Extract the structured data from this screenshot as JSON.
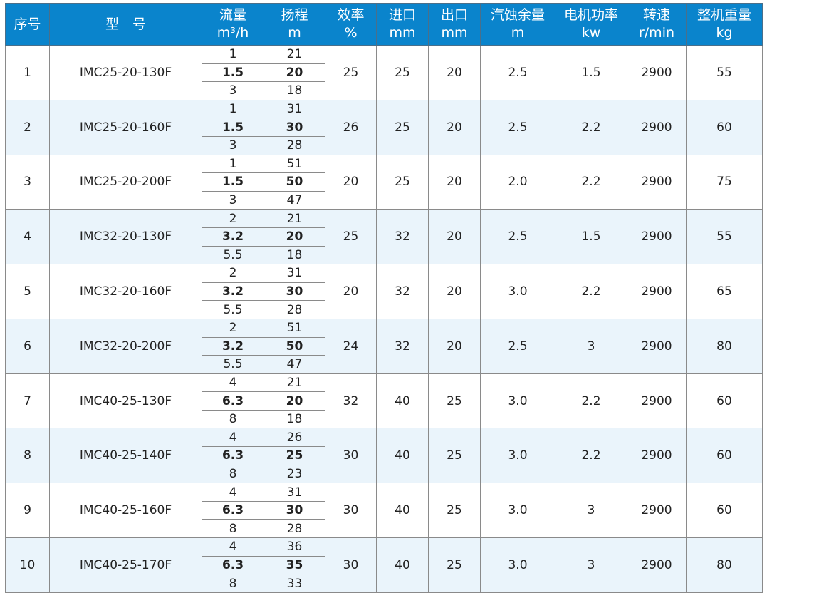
{
  "header": [
    {
      "l1": "序号",
      "l2": ""
    },
    {
      "l1": "型　号",
      "l2": ""
    },
    {
      "l1": "流量",
      "l2": "m³/h"
    },
    {
      "l1": "扬程",
      "l2": "m"
    },
    {
      "l1": "效率",
      "l2": "%"
    },
    {
      "l1": "进口",
      "l2": "mm"
    },
    {
      "l1": "出口",
      "l2": "mm"
    },
    {
      "l1": "汽蚀余量",
      "l2": "m"
    },
    {
      "l1": "电机功率",
      "l2": "kw"
    },
    {
      "l1": "转速",
      "l2": "r/min"
    },
    {
      "l1": "整机重量",
      "l2": "kg"
    }
  ],
  "colors": {
    "header_bg": "#0a84cc",
    "alt_row_bg": "#eaf4fb",
    "border": "#8a8a8a"
  },
  "rows": [
    {
      "no": "1",
      "model": "IMC25-20-130F",
      "flow": [
        "1",
        "1.5",
        "3"
      ],
      "head": [
        "21",
        "20",
        "18"
      ],
      "eff": "25",
      "inlet": "25",
      "outlet": "20",
      "npsh": "2.5",
      "power": "1.5",
      "speed": "2900",
      "weight": "55"
    },
    {
      "no": "2",
      "model": "IMC25-20-160F",
      "flow": [
        "1",
        "1.5",
        "3"
      ],
      "head": [
        "31",
        "30",
        "28"
      ],
      "eff": "26",
      "inlet": "25",
      "outlet": "20",
      "npsh": "2.5",
      "power": "2.2",
      "speed": "2900",
      "weight": "60"
    },
    {
      "no": "3",
      "model": "IMC25-20-200F",
      "flow": [
        "1",
        "1.5",
        "3"
      ],
      "head": [
        "51",
        "50",
        "47"
      ],
      "eff": "20",
      "inlet": "25",
      "outlet": "20",
      "npsh": "2.0",
      "power": "2.2",
      "speed": "2900",
      "weight": "75"
    },
    {
      "no": "4",
      "model": "IMC32-20-130F",
      "flow": [
        "2",
        "3.2",
        "5.5"
      ],
      "head": [
        "21",
        "20",
        "18"
      ],
      "eff": "25",
      "inlet": "32",
      "outlet": "20",
      "npsh": "2.5",
      "power": "1.5",
      "speed": "2900",
      "weight": "55"
    },
    {
      "no": "5",
      "model": "IMC32-20-160F",
      "flow": [
        "2",
        "3.2",
        "5.5"
      ],
      "head": [
        "31",
        "30",
        "28"
      ],
      "eff": "20",
      "inlet": "32",
      "outlet": "20",
      "npsh": "3.0",
      "power": "2.2",
      "speed": "2900",
      "weight": "65"
    },
    {
      "no": "6",
      "model": "IMC32-20-200F",
      "flow": [
        "2",
        "3.2",
        "5.5"
      ],
      "head": [
        "51",
        "50",
        "47"
      ],
      "eff": "24",
      "inlet": "32",
      "outlet": "20",
      "npsh": "2.5",
      "power": "3",
      "speed": "2900",
      "weight": "80"
    },
    {
      "no": "7",
      "model": "IMC40-25-130F",
      "flow": [
        "4",
        "6.3",
        "8"
      ],
      "head": [
        "21",
        "20",
        "18"
      ],
      "eff": "32",
      "inlet": "40",
      "outlet": "25",
      "npsh": "3.0",
      "power": "2.2",
      "speed": "2900",
      "weight": "60"
    },
    {
      "no": "8",
      "model": "IMC40-25-140F",
      "flow": [
        "4",
        "6.3",
        "8"
      ],
      "head": [
        "26",
        "25",
        "23"
      ],
      "eff": "30",
      "inlet": "40",
      "outlet": "25",
      "npsh": "3.0",
      "power": "2.2",
      "speed": "2900",
      "weight": "60"
    },
    {
      "no": "9",
      "model": "IMC40-25-160F",
      "flow": [
        "4",
        "6.3",
        "8"
      ],
      "head": [
        "31",
        "30",
        "28"
      ],
      "eff": "30",
      "inlet": "40",
      "outlet": "25",
      "npsh": "3.0",
      "power": "3",
      "speed": "2900",
      "weight": "60"
    },
    {
      "no": "10",
      "model": "IMC40-25-170F",
      "flow": [
        "4",
        "6.3",
        "8"
      ],
      "head": [
        "36",
        "35",
        "33"
      ],
      "eff": "30",
      "inlet": "40",
      "outlet": "25",
      "npsh": "3.0",
      "power": "3",
      "speed": "2900",
      "weight": "80"
    }
  ]
}
